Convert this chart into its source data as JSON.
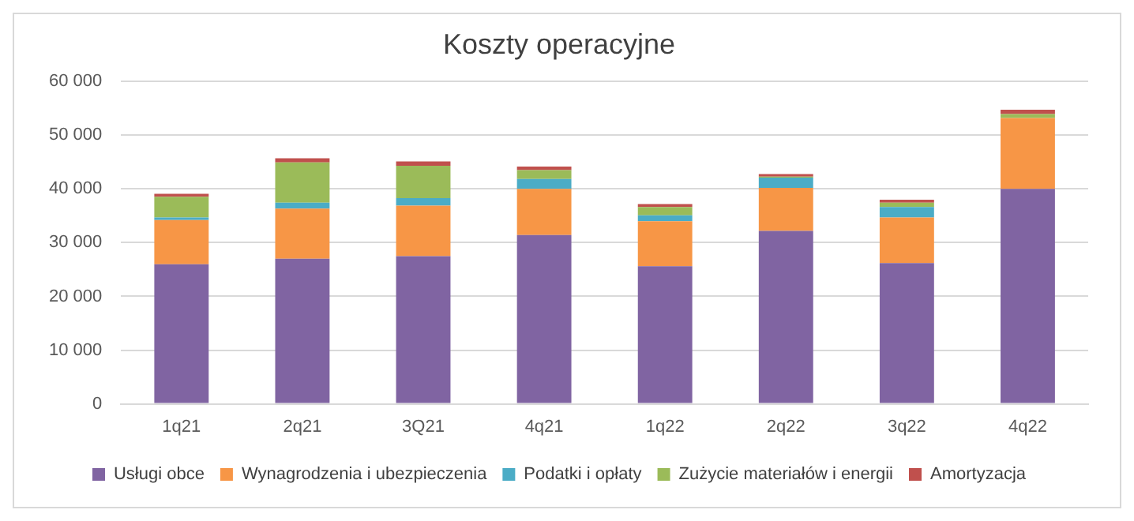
{
  "chart_data": {
    "type": "bar",
    "stacked": true,
    "title": "Koszty operacyjne",
    "categories": [
      "1q21",
      "2q21",
      "3Q21",
      "4q21",
      "1q22",
      "2q22",
      "3q22",
      "4q22"
    ],
    "series": [
      {
        "name": "Usługi obce",
        "color": "#8064a2",
        "values": [
          26000,
          27000,
          27500,
          31400,
          25600,
          32200,
          26200,
          40000
        ]
      },
      {
        "name": "Wynagrodzenia i ubezpieczenia",
        "color": "#f79646",
        "values": [
          8200,
          9350,
          9400,
          8600,
          8400,
          8000,
          8500,
          13200
        ]
      },
      {
        "name": "Podatki i opłaty",
        "color": "#4bacc6",
        "values": [
          500,
          1100,
          1400,
          1850,
          1100,
          1900,
          1950,
          null
        ]
      },
      {
        "name": "Zużycie materiałów i energii",
        "color": "#9bbb59",
        "values": [
          3850,
          7500,
          6000,
          1650,
          1550,
          200,
          800,
          750
        ]
      },
      {
        "name": "Amortyzacja",
        "color": "#c0504d",
        "values": [
          550,
          750,
          800,
          650,
          550,
          450,
          550,
          800
        ]
      }
    ],
    "ylim": [
      0,
      60000
    ],
    "yticks": [
      {
        "value": 0,
        "label": "0"
      },
      {
        "value": 10000,
        "label": "10 000"
      },
      {
        "value": 20000,
        "label": "20 000"
      },
      {
        "value": 30000,
        "label": "30 000"
      },
      {
        "value": 40000,
        "label": "40 000"
      },
      {
        "value": 50000,
        "label": "50 000"
      },
      {
        "value": 60000,
        "label": "60 000"
      }
    ],
    "grid": "y",
    "legend": "bottom"
  }
}
